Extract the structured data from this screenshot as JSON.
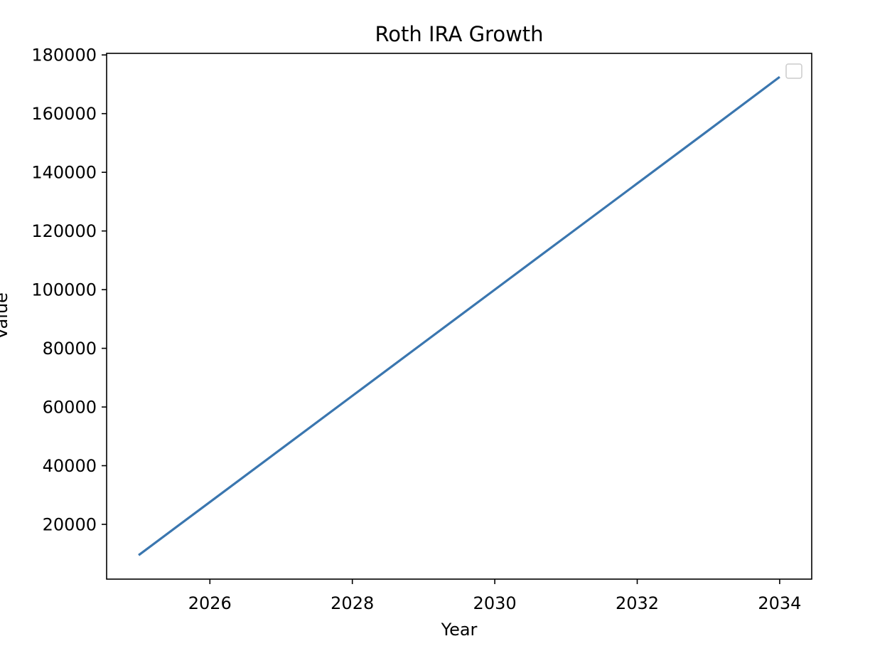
{
  "chart_data": {
    "type": "line",
    "title": "Roth IRA Growth",
    "xlabel": "Year",
    "ylabel": "Value",
    "xlim": [
      2024.55,
      2034.45
    ],
    "ylim": [
      1330,
      180540
    ],
    "x_ticks": [
      2026,
      2028,
      2030,
      2032,
      2034
    ],
    "y_ticks": [
      20000,
      40000,
      60000,
      80000,
      100000,
      120000,
      140000,
      160000,
      180000
    ],
    "grid": false,
    "legend": {
      "placement": "top-right",
      "entries": []
    },
    "series": [
      {
        "color": "#3a76af",
        "x": [
          2025,
          2026,
          2027,
          2028,
          2029,
          2030,
          2031,
          2032,
          2033,
          2034
        ],
        "y": [
          9500,
          27600,
          45700,
          63800,
          81900,
          100000,
          118100,
          136200,
          154300,
          172500
        ]
      }
    ]
  }
}
